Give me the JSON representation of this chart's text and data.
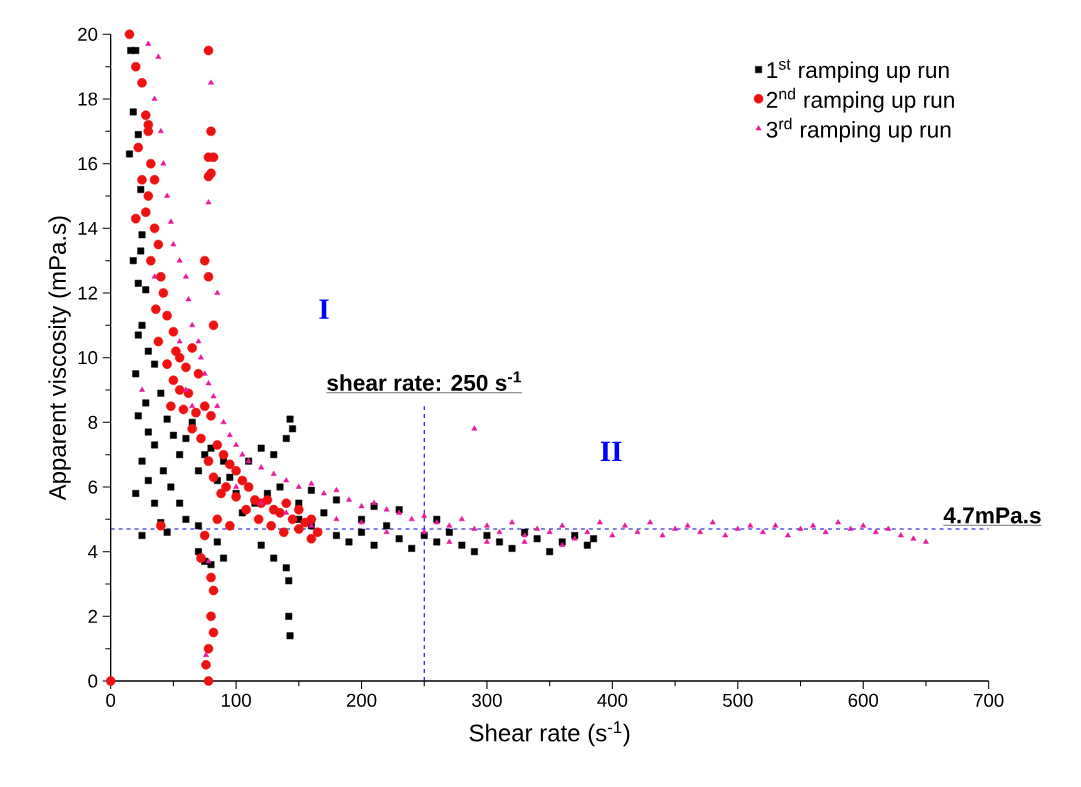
{
  "chart_data": {
    "type": "scatter",
    "xlabel": "Shear rate (s$^{-1}$)",
    "ylabel": "Apparent viscosity (mPa.s)",
    "xlim": [
      0,
      700
    ],
    "ylim": [
      0,
      20
    ],
    "xticks": [
      0,
      100,
      200,
      300,
      400,
      500,
      600,
      700
    ],
    "yticks": [
      0,
      2,
      4,
      6,
      8,
      10,
      12,
      14,
      16,
      18,
      20
    ],
    "grid": false,
    "legend": "top right",
    "ref_lines": [
      {
        "axis": "x",
        "value": 250,
        "label": "shear rate: 250 s$^{-1}$",
        "color": "#0000cc",
        "line_style": "dashed"
      },
      {
        "axis": "y",
        "value": 4.7,
        "label": "4.7mPa.s",
        "color": "#0000cc",
        "line_style": "dashed"
      }
    ],
    "annotations": [
      "I",
      "II"
    ],
    "series": [
      {
        "name": "1$^{st}$ ramping up run",
        "color": "#000000",
        "marker": "square",
        "x": [
          16,
          20,
          18,
          22,
          24,
          15,
          24,
          25,
          22,
          18,
          28,
          25,
          22,
          30,
          35,
          20,
          28,
          40,
          22,
          45,
          30,
          50,
          35,
          25,
          55,
          60,
          65,
          42,
          30,
          70,
          75,
          80,
          48,
          20,
          35,
          55,
          85,
          90,
          95,
          60,
          40,
          25,
          45,
          70,
          100,
          110,
          120,
          130,
          140,
          143,
          145,
          105,
          115,
          125,
          135,
          150,
          160,
          160,
          170,
          180,
          190,
          200,
          210,
          220,
          230,
          240,
          250,
          260,
          270,
          280,
          290,
          300,
          310,
          320,
          330,
          340,
          350,
          360,
          370,
          380,
          385,
          90,
          80,
          70,
          75,
          140,
          142,
          142,
          143,
          130,
          120,
          85,
          260,
          230,
          210,
          180,
          200,
          150
        ],
        "values": [
          19.5,
          19.5,
          17.6,
          16.9,
          15.2,
          16.3,
          13.3,
          13.8,
          12.3,
          13.0,
          12.1,
          11.0,
          10.7,
          10.2,
          9.8,
          9.5,
          8.6,
          8.9,
          8.2,
          8.1,
          7.7,
          7.6,
          7.3,
          6.8,
          7.0,
          7.5,
          8.0,
          6.5,
          6.2,
          6.5,
          7.0,
          7.2,
          6.0,
          5.8,
          5.5,
          5.5,
          6.2,
          6.8,
          6.3,
          5.0,
          4.9,
          4.5,
          4.6,
          4.8,
          5.8,
          6.8,
          7.2,
          7.0,
          7.5,
          8.1,
          7.8,
          5.2,
          5.5,
          5.8,
          6.0,
          5.5,
          4.8,
          5.9,
          5.2,
          4.5,
          4.3,
          4.6,
          4.2,
          4.8,
          4.4,
          4.1,
          4.5,
          4.3,
          4.6,
          4.2,
          4.0,
          4.5,
          4.3,
          4.1,
          4.6,
          4.4,
          4.0,
          4.3,
          4.5,
          4.2,
          4.4,
          3.8,
          3.6,
          4.0,
          3.7,
          3.5,
          3.1,
          2.0,
          1.4,
          3.8,
          4.2,
          4.3,
          5.0,
          5.3,
          5.4,
          5.6,
          5.0,
          5.0
        ]
      },
      {
        "name": "2$^{nd}$ ramping up run",
        "color": "#ee1111",
        "marker": "circle",
        "x": [
          15,
          20,
          25,
          28,
          30,
          22,
          32,
          25,
          35,
          30,
          28,
          35,
          20,
          38,
          32,
          40,
          42,
          36,
          45,
          50,
          38,
          52,
          55,
          45,
          60,
          65,
          50,
          55,
          70,
          62,
          48,
          58,
          68,
          75,
          80,
          65,
          72,
          85,
          90,
          78,
          95,
          100,
          82,
          92,
          105,
          110,
          88,
          100,
          115,
          120,
          125,
          130,
          108,
          135,
          140,
          145,
          150,
          155,
          160,
          165,
          118,
          128,
          138,
          150,
          160,
          95,
          85,
          75,
          40,
          30,
          78,
          80,
          78,
          82,
          78,
          80,
          75,
          78,
          82,
          72,
          80,
          82,
          80,
          82,
          78,
          76,
          78,
          0
        ],
        "values": [
          20,
          19,
          18.5,
          17.5,
          17,
          16.5,
          16,
          15.5,
          15.5,
          15,
          14.5,
          14,
          14.3,
          13.5,
          13,
          12.5,
          12,
          11.5,
          11.3,
          10.8,
          10.5,
          10.2,
          10.0,
          9.8,
          9.7,
          10.3,
          9.3,
          9.0,
          9.5,
          8.9,
          8.5,
          8.4,
          8.3,
          8.5,
          8.2,
          7.8,
          7.5,
          7.3,
          7.0,
          6.8,
          6.7,
          6.5,
          6.3,
          6.0,
          6.2,
          6.0,
          5.8,
          5.7,
          5.6,
          5.5,
          5.6,
          5.3,
          5.3,
          5.2,
          5.5,
          5.0,
          5.3,
          4.9,
          5.0,
          4.6,
          5.0,
          4.8,
          4.6,
          4.7,
          4.4,
          4.8,
          5.0,
          4.5,
          4.8,
          17.2,
          19.5,
          17.0,
          16.2,
          16.2,
          15.6,
          15.7,
          13.0,
          12.5,
          11.0,
          3.8,
          3.2,
          2.8,
          2.0,
          1.5,
          1.0,
          0.5,
          0,
          0
        ]
      },
      {
        "name": "3$^{rd}$ ramping up run",
        "color": "#e8199a",
        "marker": "triangle",
        "x": [
          30,
          38,
          35,
          40,
          42,
          45,
          48,
          50,
          55,
          60,
          62,
          65,
          70,
          72,
          75,
          78,
          82,
          85,
          90,
          95,
          100,
          105,
          110,
          120,
          130,
          140,
          150,
          160,
          170,
          180,
          190,
          200,
          210,
          220,
          230,
          240,
          250,
          260,
          270,
          280,
          290,
          290,
          300,
          310,
          320,
          330,
          340,
          350,
          360,
          370,
          380,
          390,
          400,
          410,
          420,
          430,
          440,
          450,
          460,
          470,
          480,
          490,
          500,
          510,
          520,
          530,
          540,
          550,
          560,
          570,
          580,
          590,
          600,
          610,
          620,
          630,
          640,
          650,
          80,
          78,
          85,
          100,
          120,
          140,
          160,
          180,
          200,
          220,
          250,
          270,
          300,
          330,
          360,
          78,
          76,
          25,
          35,
          55,
          60,
          65
        ],
        "values": [
          19.7,
          19.3,
          18,
          17,
          16,
          15,
          14.2,
          13.5,
          13,
          12.5,
          11.8,
          11,
          10.5,
          10,
          9.5,
          9.2,
          8.8,
          8.5,
          8.0,
          7.6,
          7.3,
          7.0,
          6.8,
          6.6,
          6.4,
          6.2,
          6.0,
          6.1,
          5.8,
          5.9,
          5.6,
          5.4,
          5.5,
          5.3,
          5.2,
          5.0,
          5.1,
          4.9,
          4.8,
          5.0,
          7.8,
          4.7,
          4.8,
          4.6,
          4.9,
          4.5,
          4.7,
          4.6,
          4.8,
          4.4,
          4.6,
          4.9,
          4.5,
          4.8,
          4.6,
          4.9,
          4.5,
          4.7,
          4.8,
          4.6,
          4.9,
          4.5,
          4.7,
          4.8,
          4.6,
          4.8,
          4.5,
          4.7,
          4.8,
          4.6,
          4.9,
          4.7,
          4.8,
          4.6,
          4.7,
          4.5,
          4.4,
          4.3,
          18.5,
          14.8,
          12,
          6.0,
          5.5,
          5.2,
          4.8,
          5.0,
          4.9,
          4.6,
          4.6,
          4.3,
          4.3,
          4.3,
          4.2,
          3.7,
          0.8,
          9.0,
          12.5,
          10.5,
          9.0,
          8.5
        ]
      }
    ]
  }
}
